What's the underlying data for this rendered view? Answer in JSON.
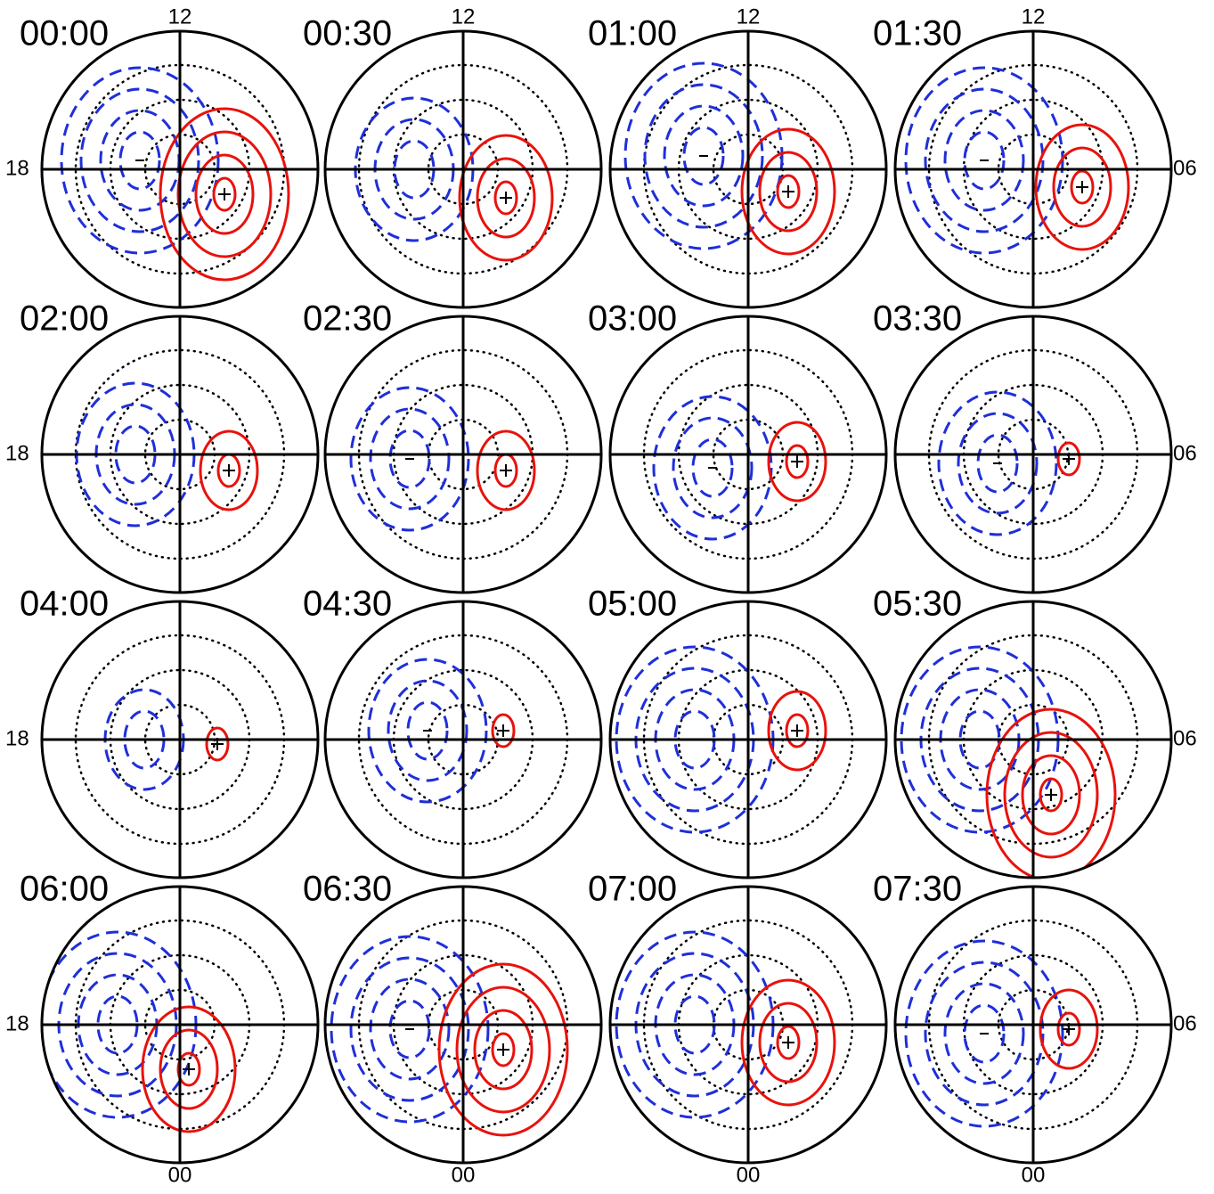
{
  "panels": [
    {
      "title": "00:00"
    },
    {
      "title": "00:30"
    },
    {
      "title": "01:00"
    },
    {
      "title": "01:30"
    },
    {
      "title": "02:00"
    },
    {
      "title": "02:30"
    },
    {
      "title": "03:00"
    },
    {
      "title": "03:30"
    },
    {
      "title": "04:00"
    },
    {
      "title": "04:30"
    },
    {
      "title": "05:00"
    },
    {
      "title": "05:30"
    },
    {
      "title": "06:00"
    },
    {
      "title": "06:30"
    },
    {
      "title": "07:00"
    },
    {
      "title": "07:30"
    }
  ],
  "axis_labels": {
    "top": "12",
    "left": "18",
    "right": "06",
    "bottom": "00"
  }
}
